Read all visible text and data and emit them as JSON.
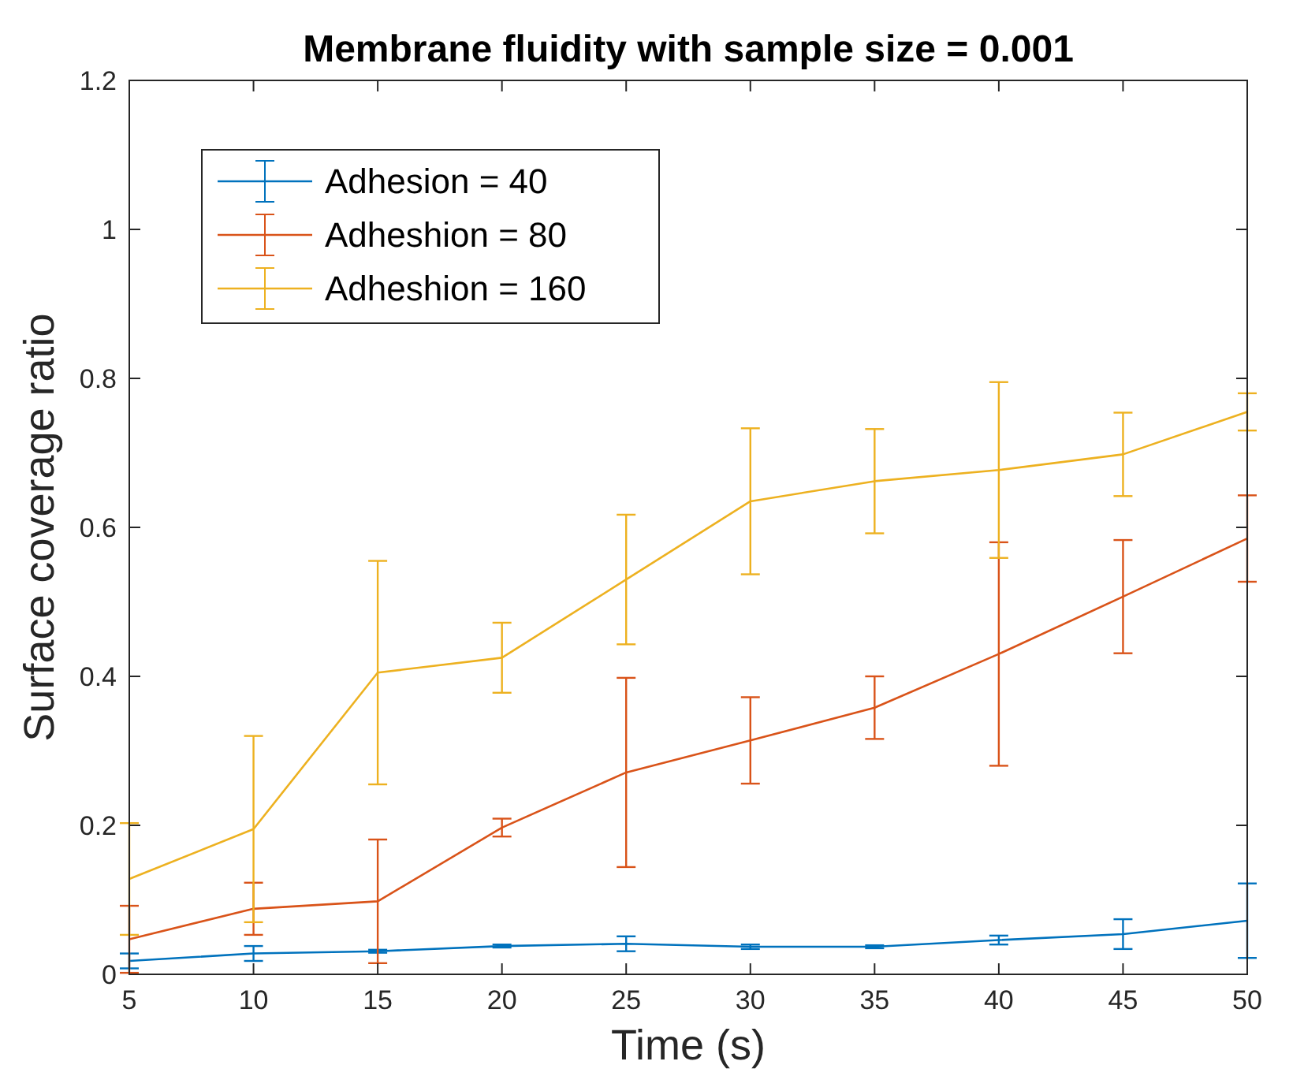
{
  "chart_data": {
    "type": "line",
    "title": "Membrane fluidity with sample size = 0.001",
    "xlabel": "Time (s)",
    "ylabel": "Surface coverage ratio",
    "x": [
      5,
      10,
      15,
      20,
      25,
      30,
      35,
      40,
      45,
      50
    ],
    "series": [
      {
        "name": "Adhesion = 40",
        "color": "#0072bd",
        "values": [
          0.018,
          0.028,
          0.031,
          0.038,
          0.041,
          0.037,
          0.037,
          0.046,
          0.054,
          0.072
        ],
        "errors": [
          0.01,
          0.01,
          0.002,
          0.002,
          0.01,
          0.003,
          0.002,
          0.006,
          0.02,
          0.05
        ]
      },
      {
        "name": "Adheshion = 80",
        "color": "#d95319",
        "values": [
          0.047,
          0.088,
          0.098,
          0.197,
          0.271,
          0.314,
          0.358,
          0.43,
          0.507,
          0.585
        ],
        "errors": [
          0.045,
          0.035,
          0.083,
          0.012,
          0.127,
          0.058,
          0.042,
          0.15,
          0.076,
          0.058
        ]
      },
      {
        "name": "Adheshion = 160",
        "color": "#edb120",
        "values": [
          0.128,
          0.195,
          0.405,
          0.425,
          0.53,
          0.635,
          0.662,
          0.677,
          0.698,
          0.755
        ],
        "errors": [
          0.075,
          0.125,
          0.15,
          0.047,
          0.087,
          0.098,
          0.07,
          0.118,
          0.056,
          0.025
        ]
      }
    ],
    "xlim": [
      5,
      50
    ],
    "xticks": [
      5,
      10,
      15,
      20,
      25,
      30,
      35,
      40,
      45,
      50
    ],
    "ylim": [
      0,
      1.2
    ],
    "yticks": [
      0,
      0.2,
      0.4,
      0.6,
      0.8,
      1,
      1.2
    ],
    "grid": false,
    "legend": "top left",
    "marker": "none",
    "line_style": "solid"
  }
}
